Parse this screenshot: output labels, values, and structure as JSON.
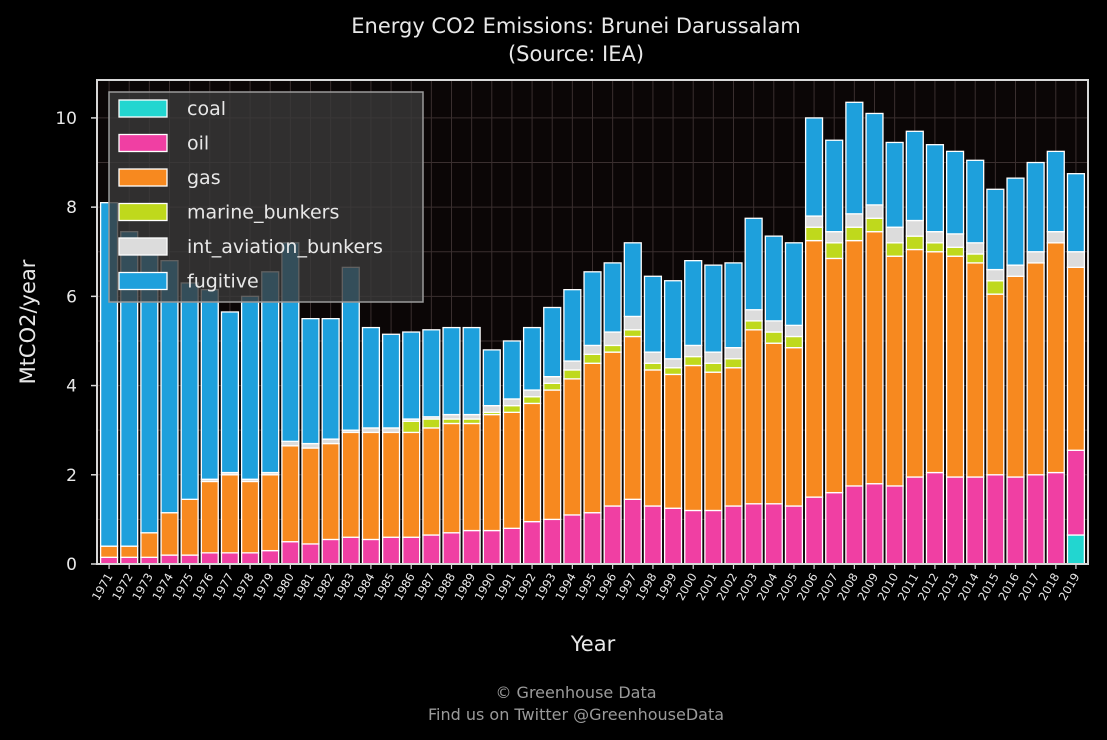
{
  "chart_data": {
    "type": "bar",
    "stacked": true,
    "title": "Energy CO2 Emissions: Brunei Darussalam",
    "subtitle": "(Source: IEA)",
    "xlabel": "Year",
    "ylabel": "MtCO2/year",
    "ylim": [
      0,
      10.85
    ],
    "yticks": [
      0,
      2,
      4,
      6,
      8,
      10
    ],
    "grid": true,
    "legend_position": "top-left",
    "colors": {
      "coal": "#22d6d0",
      "oil": "#f03fa3",
      "gas": "#f7891f",
      "marine_bunkers": "#bfd91c",
      "int_aviation_bunkers": "#dcdcdc",
      "fugitive": "#1ea0dc",
      "background": "#000000",
      "plot_background": "#0b0606",
      "grid": "#3a2f2f"
    },
    "categories": [
      "1971",
      "1972",
      "1973",
      "1974",
      "1975",
      "1976",
      "1977",
      "1978",
      "1979",
      "1980",
      "1981",
      "1982",
      "1983",
      "1984",
      "1985",
      "1986",
      "1987",
      "1988",
      "1989",
      "1990",
      "1991",
      "1992",
      "1993",
      "1994",
      "1995",
      "1996",
      "1997",
      "1998",
      "1999",
      "2000",
      "2001",
      "2002",
      "2003",
      "2004",
      "2005",
      "2006",
      "2007",
      "2008",
      "2009",
      "2010",
      "2011",
      "2012",
      "2013",
      "2014",
      "2015",
      "2016",
      "2017",
      "2018",
      "2019"
    ],
    "series": [
      {
        "name": "coal",
        "values": [
          0,
          0,
          0,
          0,
          0,
          0,
          0,
          0,
          0,
          0,
          0,
          0,
          0,
          0,
          0,
          0,
          0,
          0,
          0,
          0,
          0,
          0,
          0,
          0,
          0,
          0,
          0,
          0,
          0,
          0,
          0,
          0,
          0,
          0,
          0,
          0,
          0,
          0,
          0,
          0,
          0,
          0,
          0,
          0,
          0,
          0,
          0,
          0,
          0.65
        ]
      },
      {
        "name": "oil",
        "values": [
          0.15,
          0.15,
          0.15,
          0.2,
          0.2,
          0.25,
          0.25,
          0.25,
          0.3,
          0.5,
          0.45,
          0.55,
          0.6,
          0.55,
          0.6,
          0.6,
          0.65,
          0.7,
          0.75,
          0.75,
          0.8,
          0.95,
          1.0,
          1.1,
          1.15,
          1.3,
          1.45,
          1.3,
          1.25,
          1.2,
          1.2,
          1.3,
          1.35,
          1.35,
          1.3,
          1.5,
          1.6,
          1.75,
          1.8,
          1.75,
          1.95,
          2.05,
          1.95,
          1.95,
          2.0,
          1.95,
          2.0,
          2.05,
          1.9
        ]
      },
      {
        "name": "gas",
        "values": [
          0.25,
          0.25,
          0.55,
          0.95,
          1.25,
          1.6,
          1.75,
          1.6,
          1.7,
          2.15,
          2.15,
          2.15,
          2.35,
          2.4,
          2.35,
          2.35,
          2.4,
          2.45,
          2.4,
          2.6,
          2.6,
          2.65,
          2.9,
          3.05,
          3.35,
          3.45,
          3.65,
          3.05,
          3.0,
          3.25,
          3.1,
          3.1,
          3.9,
          3.6,
          3.55,
          5.75,
          5.25,
          5.5,
          5.65,
          5.15,
          5.1,
          4.95,
          4.95,
          4.8,
          4.05,
          4.5,
          4.75,
          5.15,
          4.1
        ]
      },
      {
        "name": "marine_bunkers",
        "values": [
          0,
          0,
          0,
          0,
          0,
          0,
          0,
          0,
          0,
          0,
          0,
          0,
          0,
          0,
          0,
          0.25,
          0.2,
          0.1,
          0.1,
          0.05,
          0.15,
          0.15,
          0.15,
          0.2,
          0.2,
          0.15,
          0.15,
          0.15,
          0.15,
          0.2,
          0.2,
          0.2,
          0.2,
          0.25,
          0.25,
          0.3,
          0.35,
          0.3,
          0.3,
          0.3,
          0.3,
          0.2,
          0.2,
          0.2,
          0.3,
          0,
          0,
          0,
          0
        ]
      },
      {
        "name": "int_aviation_bunkers",
        "values": [
          0,
          0,
          0,
          0,
          0,
          0.05,
          0.05,
          0.05,
          0.05,
          0.1,
          0.1,
          0.1,
          0.05,
          0.1,
          0.1,
          0.05,
          0.05,
          0.1,
          0.1,
          0.15,
          0.15,
          0.15,
          0.15,
          0.2,
          0.2,
          0.3,
          0.3,
          0.25,
          0.2,
          0.25,
          0.25,
          0.25,
          0.25,
          0.25,
          0.25,
          0.25,
          0.25,
          0.3,
          0.3,
          0.35,
          0.35,
          0.25,
          0.3,
          0.25,
          0.25,
          0.25,
          0.25,
          0.25,
          0.35
        ]
      },
      {
        "name": "fugitive",
        "values": [
          7.7,
          7.05,
          6.4,
          5.65,
          4.85,
          4.25,
          3.6,
          4.1,
          4.5,
          4.45,
          2.8,
          2.7,
          3.65,
          2.25,
          2.1,
          1.95,
          1.95,
          1.95,
          1.95,
          1.25,
          1.3,
          1.4,
          1.55,
          1.6,
          1.65,
          1.55,
          1.65,
          1.7,
          1.75,
          1.9,
          1.95,
          1.9,
          2.05,
          1.9,
          1.85,
          2.2,
          2.05,
          2.5,
          2.05,
          1.9,
          2.0,
          1.95,
          1.85,
          1.85,
          1.8,
          1.95,
          2.0,
          1.8,
          1.75
        ]
      }
    ]
  },
  "footer": {
    "line1": "© Greenhouse Data",
    "line2": "Find us on Twitter @GreenhouseData"
  }
}
